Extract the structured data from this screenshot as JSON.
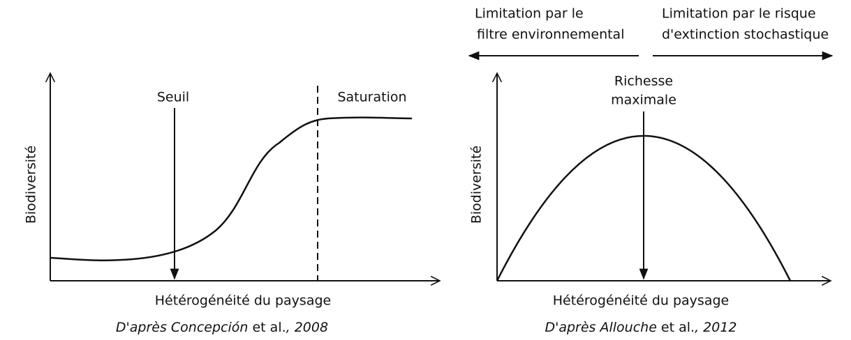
{
  "left_panel": {
    "threshold_label": "Seuil",
    "saturation_label": "Saturation",
    "y_label": "Biodiversité",
    "x_label": "Hétérogénéité du paysage",
    "caption": [
      "D'après Concepción",
      " et al.",
      ", 2008"
    ]
  },
  "right_panel": {
    "left_limit_label": [
      "Limitation par le",
      "filtre environnemental"
    ],
    "right_limit_label": [
      "Limitation par le risque",
      "d'extinction stochastique"
    ],
    "peak_label": [
      "Richesse",
      "maximale"
    ],
    "y_label": "Biodiversité",
    "x_label": "Hétérogénéité du paysage",
    "caption": [
      "D'après Allouche",
      " et al.",
      ", 2012"
    ]
  }
}
